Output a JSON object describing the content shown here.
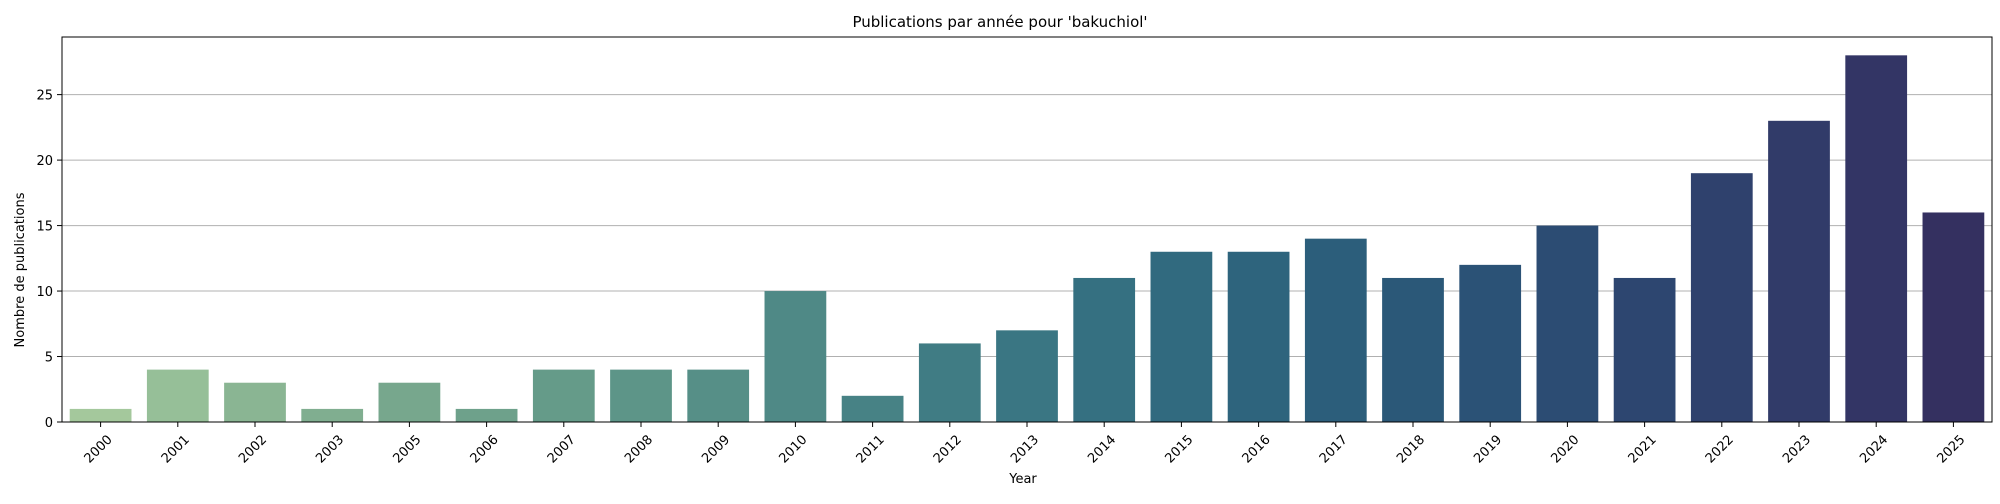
{
  "chart_data": {
    "type": "bar",
    "title": "Publications par année pour 'bakuchiol'",
    "xlabel": "Year",
    "ylabel": "Nombre de publications",
    "categories": [
      "2000",
      "2001",
      "2002",
      "2003",
      "2005",
      "2006",
      "2007",
      "2008",
      "2009",
      "2010",
      "2011",
      "2012",
      "2013",
      "2014",
      "2015",
      "2016",
      "2017",
      "2018",
      "2019",
      "2020",
      "2021",
      "2022",
      "2023",
      "2024",
      "2025"
    ],
    "values": [
      1,
      4,
      3,
      1,
      3,
      1,
      4,
      4,
      4,
      10,
      2,
      6,
      7,
      11,
      13,
      13,
      14,
      11,
      12,
      15,
      11,
      19,
      23,
      28,
      16
    ],
    "ylim": [
      0,
      29.4
    ],
    "yticks": [
      0,
      5,
      10,
      15,
      20,
      25
    ],
    "grid": "horizontal",
    "colors": [
      "#a4c89c",
      "#96bf98",
      "#8ab593",
      "#80ae90",
      "#77a78d",
      "#6ea18b",
      "#659b89",
      "#5d9588",
      "#568f87",
      "#4f8986",
      "#478285",
      "#407c84",
      "#3a7683",
      "#357081",
      "#316a7f",
      "#2e647d",
      "#2c5e7b",
      "#2b5878",
      "#2b5276",
      "#2c4c73",
      "#2d4670",
      "#2f416d",
      "#313b69",
      "#333565",
      "#343060"
    ]
  }
}
